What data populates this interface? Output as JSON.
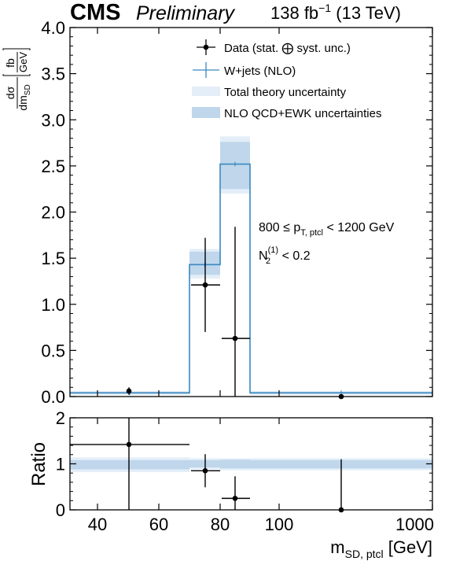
{
  "header": {
    "experiment": "CMS",
    "status": "Preliminary",
    "lumi_prefix": "138 fb",
    "lumi_exp": "−1",
    "lumi_suffix": " (13 TeV)"
  },
  "annotations": {
    "line1_pre": "800 ≤ p",
    "line1_sub": "T, ptcl",
    "line1_post": " < 1200 GeV",
    "line2_pre": "N",
    "line2_sub": "2",
    "line2_sup": "(1)",
    "line2_post": " < 0.2"
  },
  "legend": {
    "data": "Data (stat. ⨁ syst. unc.)",
    "wjets": "W+jets (NLO)",
    "total_theory": "Total theory uncertainty",
    "nlo_unc": "NLO QCD+EWK uncertainties"
  },
  "colors": {
    "wjets_line": "#3a88c0",
    "total_band": "#e3eef8",
    "nlo_band": "#bfd6eb",
    "data": "#000000"
  },
  "chart_data": [
    {
      "panel": "main",
      "type": "histogram",
      "ylabel_num": "dσ",
      "ylabel_den": "dm",
      "ylabel_den_sub": "SD",
      "ylabel_unit_num": "fb",
      "ylabel_unit_den": "GeV",
      "ylim": [
        0,
        4
      ],
      "yticks": [
        "0.0",
        "0.5",
        "1.0",
        "1.5",
        "2.0",
        "2.5",
        "3.0",
        "3.5",
        "4.0"
      ],
      "bins": [
        {
          "label": "30–70",
          "data": 0.06,
          "data_err": 0.04,
          "wjets": 0.04,
          "nlo_lo": 0.03,
          "nlo_hi": 0.05,
          "tot_lo": 0.02,
          "tot_hi": 0.06
        },
        {
          "label": "70–80",
          "data": 1.21,
          "data_err": 0.51,
          "wjets": 1.43,
          "nlo_lo": 1.32,
          "nlo_hi": 1.57,
          "tot_lo": 1.28,
          "tot_hi": 1.6
        },
        {
          "label": "80–90",
          "data": 0.63,
          "data_err": 1.21,
          "wjets": 2.52,
          "nlo_lo": 2.25,
          "nlo_hi": 2.76,
          "tot_lo": 2.2,
          "tot_hi": 2.82
        },
        {
          "label": "90–1000",
          "data": 0.0,
          "data_err": 0.0,
          "wjets": 0.04,
          "nlo_lo": 0.03,
          "nlo_hi": 0.05,
          "tot_lo": 0.02,
          "tot_hi": 0.06
        }
      ]
    },
    {
      "panel": "ratio",
      "type": "histogram",
      "ylabel": "Ratio",
      "ylim": [
        0,
        2
      ],
      "yticks": [
        "0",
        "1",
        "2"
      ],
      "xlabel_pre": "m",
      "xlabel_sub": "SD, ptcl",
      "xlabel_post": " [GeV]",
      "xticks": [
        "40",
        "60",
        "80",
        "100",
        "1000"
      ],
      "bins": [
        {
          "label": "30–70",
          "ratio": 1.42,
          "ratio_err": 1.42,
          "nlo_lo": 0.88,
          "nlo_hi": 1.08,
          "tot_lo": 0.82,
          "tot_hi": 1.14
        },
        {
          "label": "70–80",
          "ratio": 0.85,
          "ratio_err": 0.36,
          "nlo_lo": 0.92,
          "nlo_hi": 1.08,
          "tot_lo": 0.88,
          "tot_hi": 1.12
        },
        {
          "label": "80–90",
          "ratio": 0.25,
          "ratio_err": 0.48,
          "nlo_lo": 0.9,
          "nlo_hi": 1.09,
          "tot_lo": 0.86,
          "tot_hi": 1.12
        },
        {
          "label": "90–1000",
          "ratio": 0.0,
          "ratio_err": 1.1,
          "nlo_lo": 0.9,
          "nlo_hi": 1.08,
          "tot_lo": 0.86,
          "tot_hi": 1.12
        }
      ]
    }
  ]
}
